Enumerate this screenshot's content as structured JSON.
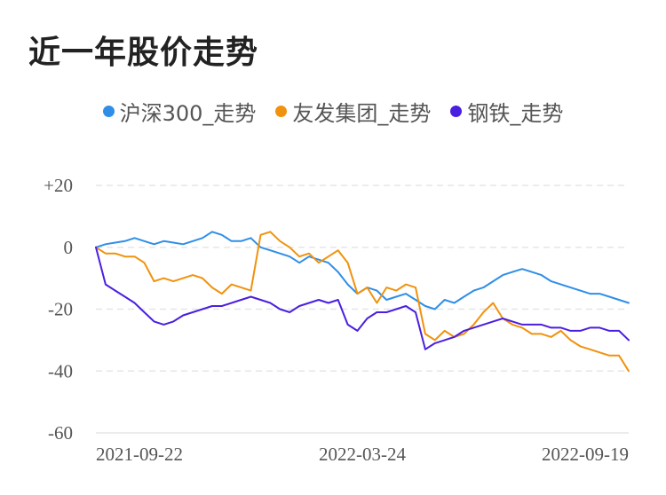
{
  "title": "近一年股价走势",
  "colors": {
    "series0": "#2f8ee8",
    "series1": "#f0920d",
    "series2": "#4a1fe0",
    "grid": "#e6e6e6",
    "text": "#555555"
  },
  "chart_data": {
    "type": "line",
    "grid": true,
    "legend_position": "top-center",
    "ylim": [
      -60,
      20
    ],
    "y_ticks": [
      20,
      0,
      -20,
      -40,
      -60
    ],
    "y_tick_labels": [
      "+20",
      "0",
      "-20",
      "-40",
      "-60"
    ],
    "x_tick_labels": [
      "2021-09-22",
      "2022-03-24",
      "2022-09-19"
    ],
    "series": [
      {
        "name": "沪深300_走势",
        "values": [
          0,
          1,
          1.5,
          2,
          3,
          2,
          1,
          2,
          1.5,
          1,
          2,
          3,
          5,
          4,
          2,
          2,
          3,
          0,
          -1,
          -2,
          -3,
          -5,
          -3,
          -4,
          -5,
          -8,
          -12,
          -15,
          -13,
          -14,
          -17,
          -16,
          -15,
          -17,
          -19,
          -20,
          -17,
          -18,
          -16,
          -14,
          -13,
          -11,
          -9,
          -8,
          -7,
          -8,
          -9,
          -11,
          -12,
          -13,
          -14,
          -15,
          -15,
          -16,
          -17,
          -18
        ]
      },
      {
        "name": "友发集团_走势",
        "values": [
          0,
          -2,
          -2,
          -3,
          -3,
          -5,
          -11,
          -10,
          -11,
          -10,
          -9,
          -10,
          -13,
          -15,
          -12,
          -13,
          -14,
          4,
          5,
          2,
          0,
          -3,
          -2,
          -5,
          -3,
          -1,
          -5,
          -15,
          -13,
          -18,
          -13,
          -14,
          -12,
          -13,
          -28,
          -30,
          -27,
          -29,
          -28,
          -25,
          -21,
          -18,
          -23,
          -25,
          -26,
          -28,
          -28,
          -29,
          -27,
          -30,
          -32,
          -33,
          -34,
          -35,
          -35,
          -40
        ]
      },
      {
        "name": "钢铁_走势",
        "values": [
          0,
          -12,
          -14,
          -16,
          -18,
          -21,
          -24,
          -25,
          -24,
          -22,
          -21,
          -20,
          -19,
          -19,
          -18,
          -17,
          -16,
          -17,
          -18,
          -20,
          -21,
          -19,
          -18,
          -17,
          -18,
          -17,
          -25,
          -27,
          -23,
          -21,
          -21,
          -20,
          -19,
          -21,
          -33,
          -31,
          -30,
          -29,
          -27,
          -26,
          -25,
          -24,
          -23,
          -24,
          -25,
          -25,
          -25,
          -26,
          -26,
          -27,
          -27,
          -26,
          -26,
          -27,
          -27,
          -30
        ]
      }
    ]
  }
}
